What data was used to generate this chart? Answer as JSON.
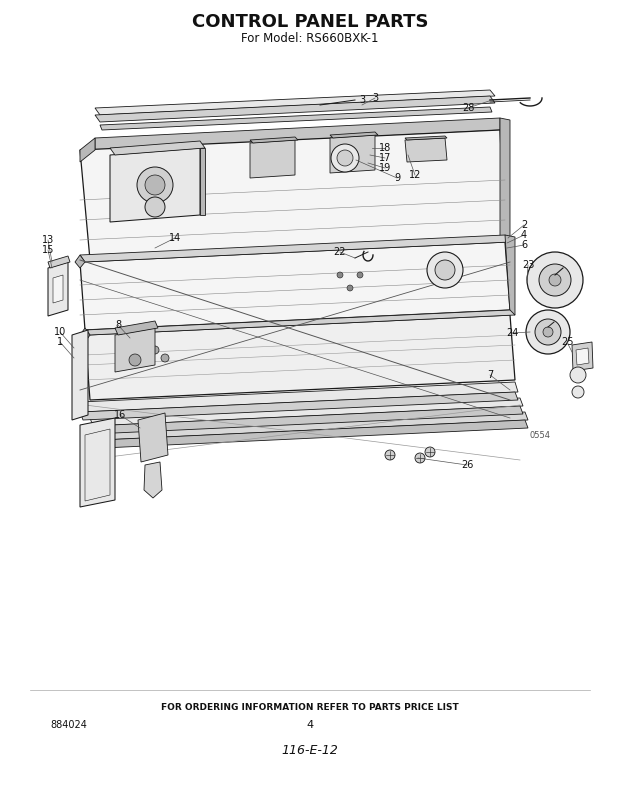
{
  "title": "CONTROL PANEL PARTS",
  "subtitle": "For Model: RS660BXK-1",
  "footer_text": "FOR ORDERING INFORMATION REFER TO PARTS PRICE LIST",
  "page_number": "4",
  "part_number_bottom_left": "884024",
  "code_bottom": "116-E-12",
  "diagram_code": "0554",
  "bg_color": "#ffffff",
  "title_fontsize": 13,
  "subtitle_fontsize": 8.5,
  "footer_fontsize": 6.5,
  "fig_width": 6.2,
  "fig_height": 7.86,
  "dpi": 100
}
